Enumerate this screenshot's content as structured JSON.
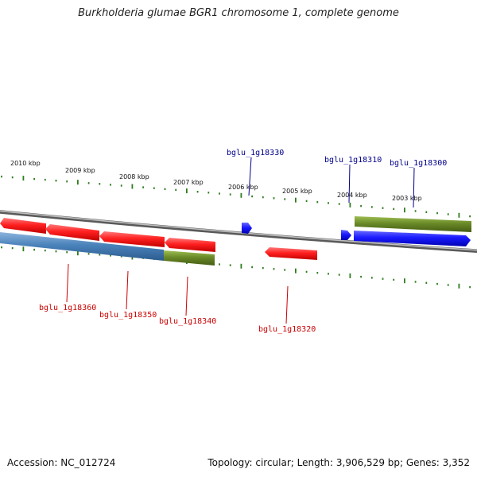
{
  "title": "Burkholderia glumae BGR1 chromosome 1, complete genome",
  "accession_text": "Accession: NC_012724",
  "topology_text": "Topology: circular; Length: 3,906,529 bp; Genes: 3,352",
  "colors": {
    "backbone": "#8a8a8a",
    "tick": "#2e7d1e",
    "red_gene": "#ff2a2a",
    "blue_gene": "#1f1fff",
    "steel_gene": "#4f86bd",
    "olive_gene": "#6b8c2a",
    "red_label": "#cc0000",
    "blue_label": "#00008b"
  },
  "scale_labels": [
    "2010 kbp",
    "2009 kbp",
    "2008 kbp",
    "2007 kbp",
    "2006 kbp",
    "2005 kbp",
    "2004 kbp",
    "2003 kbp"
  ],
  "gene_labels": {
    "top": [
      "bglu_1g18330",
      "bglu_1g18310",
      "bglu_1g18300"
    ],
    "bottom": [
      "bglu_1g18360",
      "bglu_1g18350",
      "bglu_1g18340",
      "bglu_1g18320"
    ]
  }
}
